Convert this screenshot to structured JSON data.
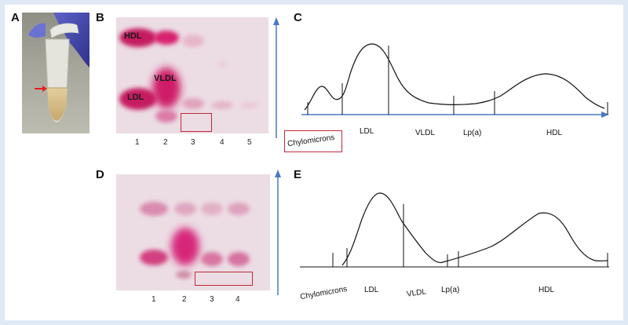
{
  "panels": {
    "A": "A",
    "B": "B",
    "C": "C",
    "D": "D",
    "E": "E"
  },
  "gel_b": {
    "band_labels": [
      "HDL",
      "VLDL",
      "LDL"
    ],
    "lanes": [
      "1",
      "2",
      "3",
      "4",
      "5"
    ]
  },
  "gel_d": {
    "lanes": [
      "1",
      "2",
      "3",
      "4"
    ]
  },
  "densitometry_c": {
    "axis_labels": [
      "Chylomicrons",
      "LDL",
      "VLDL",
      "Lp(a)",
      "HDL"
    ]
  },
  "densitometry_e": {
    "axis_labels": [
      "Chylomicrons",
      "LDL",
      "VLDL",
      "Lp(a)",
      "HDL"
    ]
  },
  "colors": {
    "highlight": "#c0283a",
    "arrow_blue": "#4a78c2",
    "band_magenta": "#d8246e",
    "gel_background": "#ecdde4"
  }
}
